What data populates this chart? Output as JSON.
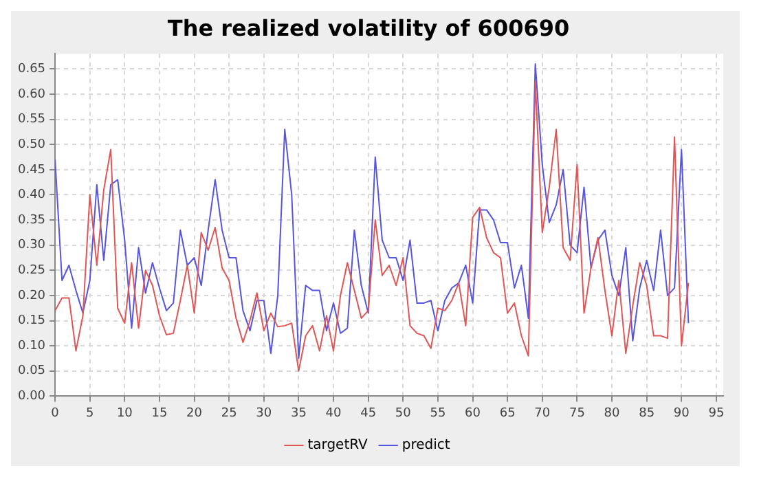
{
  "chart_data": {
    "type": "line",
    "title": "The realized volatility of 600690",
    "x": [
      0,
      1,
      2,
      3,
      4,
      5,
      6,
      7,
      8,
      9,
      10,
      11,
      12,
      13,
      14,
      15,
      16,
      17,
      18,
      19,
      20,
      21,
      22,
      23,
      24,
      25,
      26,
      27,
      28,
      29,
      30,
      31,
      32,
      33,
      34,
      35,
      36,
      37,
      38,
      39,
      40,
      41,
      42,
      43,
      44,
      45,
      46,
      47,
      48,
      49,
      50,
      51,
      52,
      53,
      54,
      55,
      56,
      57,
      58,
      59,
      60,
      61,
      62,
      63,
      64,
      65,
      66,
      67,
      68,
      69,
      70,
      71,
      72,
      73,
      74,
      75,
      76,
      77,
      78,
      79,
      80,
      81,
      82,
      83,
      84,
      85,
      86,
      87,
      88,
      89,
      90,
      91
    ],
    "series": [
      {
        "name": "targetRV",
        "color": "#e05555",
        "values": [
          0.17,
          0.195,
          0.195,
          0.09,
          0.16,
          0.4,
          0.26,
          0.41,
          0.49,
          0.175,
          0.145,
          0.265,
          0.135,
          0.25,
          0.22,
          0.16,
          0.122,
          0.125,
          0.19,
          0.26,
          0.165,
          0.325,
          0.29,
          0.335,
          0.255,
          0.23,
          0.155,
          0.107,
          0.15,
          0.205,
          0.13,
          0.165,
          0.138,
          0.14,
          0.145,
          0.05,
          0.12,
          0.14,
          0.09,
          0.16,
          0.09,
          0.2,
          0.265,
          0.21,
          0.155,
          0.17,
          0.35,
          0.24,
          0.26,
          0.22,
          0.275,
          0.14,
          0.125,
          0.12,
          0.095,
          0.175,
          0.17,
          0.19,
          0.225,
          0.14,
          0.355,
          0.375,
          0.315,
          0.285,
          0.275,
          0.165,
          0.185,
          0.12,
          0.08,
          0.625,
          0.325,
          0.415,
          0.53,
          0.295,
          0.27,
          0.46,
          0.165,
          0.255,
          0.315,
          0.21,
          0.12,
          0.23,
          0.085,
          0.18,
          0.265,
          0.22,
          0.12,
          0.12,
          0.115,
          0.515,
          0.1,
          0.225
        ]
      },
      {
        "name": "predict",
        "color": "#5555e0",
        "values": [
          0.47,
          0.23,
          0.26,
          0.21,
          0.165,
          0.23,
          0.42,
          0.27,
          0.42,
          0.43,
          0.31,
          0.135,
          0.295,
          0.205,
          0.265,
          0.215,
          0.17,
          0.185,
          0.33,
          0.26,
          0.275,
          0.22,
          0.33,
          0.43,
          0.33,
          0.275,
          0.275,
          0.17,
          0.13,
          0.19,
          0.19,
          0.085,
          0.2,
          0.53,
          0.4,
          0.075,
          0.22,
          0.21,
          0.21,
          0.13,
          0.185,
          0.125,
          0.135,
          0.33,
          0.22,
          0.165,
          0.475,
          0.31,
          0.275,
          0.275,
          0.23,
          0.31,
          0.185,
          0.185,
          0.19,
          0.13,
          0.19,
          0.215,
          0.225,
          0.26,
          0.185,
          0.37,
          0.37,
          0.35,
          0.305,
          0.305,
          0.215,
          0.26,
          0.155,
          0.66,
          0.46,
          0.345,
          0.38,
          0.45,
          0.3,
          0.285,
          0.415,
          0.255,
          0.31,
          0.33,
          0.24,
          0.2,
          0.295,
          0.11,
          0.215,
          0.27,
          0.21,
          0.33,
          0.2,
          0.215,
          0.49,
          0.145
        ]
      }
    ],
    "xlim": [
      0,
      96
    ],
    "xticks": [
      0,
      5,
      10,
      15,
      20,
      25,
      30,
      35,
      40,
      45,
      50,
      55,
      60,
      65,
      70,
      75,
      80,
      85,
      90,
      95
    ],
    "ylim": [
      0,
      0.68
    ],
    "yticks": [
      {
        "value": 0,
        "label": "0.00"
      },
      {
        "value": 0.05,
        "label": "0.05"
      },
      {
        "value": 0.1,
        "label": "0.10"
      },
      {
        "value": 0.15,
        "label": "0.15"
      },
      {
        "value": 0.2,
        "label": "0.20"
      },
      {
        "value": 0.25,
        "label": "0.25"
      },
      {
        "value": 0.3,
        "label": "0.30"
      },
      {
        "value": 0.35,
        "label": "0.35"
      },
      {
        "value": 0.4,
        "label": "0.40"
      },
      {
        "value": 0.45,
        "label": "0.45"
      },
      {
        "value": 0.5,
        "label": "0.50"
      },
      {
        "value": 0.55,
        "label": "0.55"
      },
      {
        "value": 0.6,
        "label": "0.60"
      },
      {
        "value": 0.65,
        "label": "0.65"
      }
    ],
    "grid": true,
    "legend": "bottom",
    "marker": "none",
    "line_style": "solid"
  }
}
